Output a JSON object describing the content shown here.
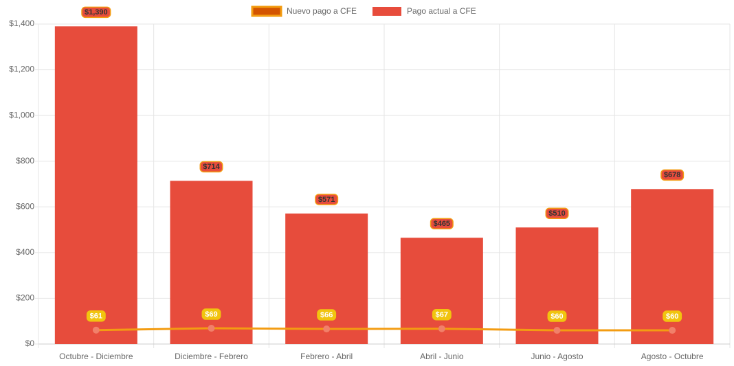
{
  "chart_data": {
    "type": "bar",
    "categories": [
      "Octubre - Diciembre",
      "Diciembre - Febrero",
      "Febrero - Abril",
      "Abril - Junio",
      "Junio - Agosto",
      "Agosto - Octubre"
    ],
    "series": [
      {
        "name": "Nuevo pago a CFE",
        "type": "line",
        "color": "#f39c12",
        "point_color": "#f1806a",
        "label_color": "#f1c40f",
        "values": [
          61,
          69,
          66,
          67,
          60,
          60
        ],
        "value_labels": [
          "$61",
          "$69",
          "$66",
          "$67",
          "$60",
          "$60"
        ]
      },
      {
        "name": "Pago actual a CFE",
        "type": "bar",
        "color": "#e74c3c",
        "border_color": "#f39c12",
        "values": [
          1390,
          714,
          571,
          465,
          510,
          678
        ],
        "value_labels": [
          "$1,390",
          "$714",
          "$571",
          "$465",
          "$510",
          "$678"
        ]
      }
    ],
    "ylim": [
      0,
      1400
    ],
    "yticks": [
      {
        "value": 0,
        "label": "$0"
      },
      {
        "value": 200,
        "label": "$200"
      },
      {
        "value": 400,
        "label": "$400"
      },
      {
        "value": 600,
        "label": "$600"
      },
      {
        "value": 800,
        "label": "$800"
      },
      {
        "value": 1000,
        "label": "$1,000"
      },
      {
        "value": 1200,
        "label": "$1,200"
      },
      {
        "value": 1400,
        "label": "$1,400"
      }
    ],
    "grid": true,
    "legend": "top"
  }
}
